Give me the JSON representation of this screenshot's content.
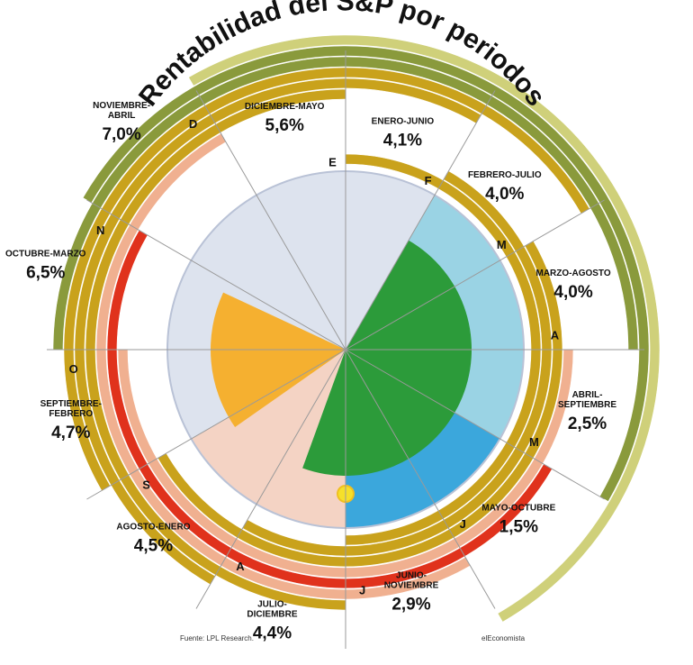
{
  "chart_data": {
    "type": "radial",
    "title": "Rentabilidad del S&P por periodos",
    "months": [
      "E",
      "F",
      "M",
      "A",
      "M",
      "J",
      "J",
      "A",
      "S",
      "O",
      "N",
      "D"
    ],
    "periods": [
      {
        "label": "ENERO-JUNIO",
        "value": "4,1%",
        "start": 0
      },
      {
        "label": "FEBRERO-JULIO",
        "value": "4,0%",
        "start": 1
      },
      {
        "label": "MARZO-AGOSTO",
        "value": "4,0%",
        "start": 2
      },
      {
        "label": "ABRIL-SEPTIEMBRE",
        "value": "2,5%",
        "start": 3
      },
      {
        "label": "MAYO-OCTUBRE",
        "value": "1,5%",
        "start": 4
      },
      {
        "label": "JUNIO-NOVIEMBRE",
        "value": "2,9%",
        "start": 5
      },
      {
        "label": "JULIO-DICIEMBRE",
        "value": "4,4%",
        "start": 6
      },
      {
        "label": "AGOSTO-ENERO",
        "value": "4,5%",
        "start": 7
      },
      {
        "label": "SEPTIEMBRE-FEBRERO",
        "value": "4,7%",
        "start": 8
      },
      {
        "label": "OCTUBRE-MARZO",
        "value": "6,5%",
        "start": 9
      },
      {
        "label": "NOVIEMBRE-ABRIL",
        "value": "7,0%",
        "start": 10
      },
      {
        "label": "DICIEMBRE-MAYO",
        "value": "5,6%",
        "start": 11
      }
    ]
  },
  "colors": {
    "olive": "#8a9a3c",
    "olive_light": "#cfd07a",
    "gold": "#c9a21c",
    "yellow": "#f2d230",
    "red": "#e0321c",
    "salmon": "#f0b090",
    "winter": "#dde3ee",
    "spring": "#9ad3e4",
    "green": "#2c9b3a",
    "summer": "#3ba7dc",
    "autumn": "#f5b030",
    "autumn_bg": "#f4d3c4"
  },
  "footer": {
    "source": "Fuente: LPL Research.",
    "credit": "elEconomista"
  }
}
